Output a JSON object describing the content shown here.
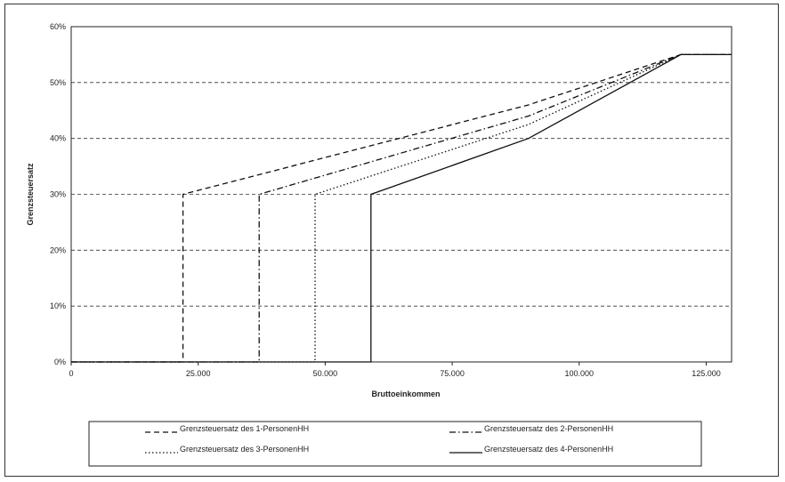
{
  "chart_data": {
    "type": "line",
    "title": "",
    "xlabel": "Bruttoeinkommen",
    "ylabel": "Grenzsteuersatz",
    "xlim": [
      0,
      130000
    ],
    "ylim": [
      0,
      0.6
    ],
    "x_ticks": [
      0,
      25000,
      50000,
      75000,
      100000,
      125000
    ],
    "x_tick_labels": [
      "0",
      "25.000",
      "50.000",
      "75.000",
      "100.000",
      "125.000"
    ],
    "y_ticks": [
      0,
      0.1,
      0.2,
      0.3,
      0.4,
      0.5,
      0.6
    ],
    "y_tick_labels": [
      "0%",
      "10%",
      "20%",
      "30%",
      "40%",
      "50%",
      "60%"
    ],
    "grid": "horizontal dashed",
    "legend_position": "bottom",
    "series": [
      {
        "name": "Grenzsteuersatz des 1-PersonenHH",
        "style": "dashed",
        "points": [
          [
            0,
            0
          ],
          [
            22000,
            0
          ],
          [
            22000,
            0.3
          ],
          [
            90000,
            0.46
          ],
          [
            120000,
            0.55
          ],
          [
            130000,
            0.55
          ]
        ]
      },
      {
        "name": "Grenzsteuersatz des 2-PersonenHH",
        "style": "dashdot",
        "points": [
          [
            0,
            0
          ],
          [
            37000,
            0
          ],
          [
            37000,
            0.3
          ],
          [
            90000,
            0.44
          ],
          [
            120000,
            0.55
          ],
          [
            130000,
            0.55
          ]
        ]
      },
      {
        "name": "Grenzsteuersatz des 3-PersonenHH",
        "style": "dotted",
        "points": [
          [
            0,
            0
          ],
          [
            48000,
            0
          ],
          [
            48000,
            0.3
          ],
          [
            90000,
            0.425
          ],
          [
            120000,
            0.55
          ],
          [
            130000,
            0.55
          ]
        ]
      },
      {
        "name": "Grenzsteuersatz des 4-PersonenHH",
        "style": "solid",
        "points": [
          [
            0,
            0
          ],
          [
            59000,
            0
          ],
          [
            59000,
            0.3
          ],
          [
            90000,
            0.4
          ],
          [
            120000,
            0.55
          ],
          [
            130000,
            0.55
          ]
        ]
      }
    ]
  }
}
